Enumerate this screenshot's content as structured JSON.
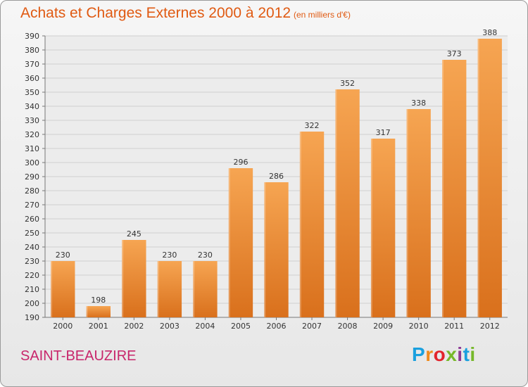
{
  "header": {
    "title": "Achats et Charges Externes 2000 à 2012",
    "subtitle": "(en milliers d'€)"
  },
  "footer": {
    "city": "SAINT-BEAUZIRE",
    "logo_text": "Proxiti"
  },
  "colors": {
    "title": "#e05a12",
    "city": "#c8266b",
    "bar_top": "#f6a552",
    "bar_bottom": "#d9701c",
    "grid": "#cfcfcf"
  },
  "chart_data": {
    "type": "bar",
    "title": "Achats et Charges Externes 2000 à 2012",
    "subtitle": "(en milliers d'€)",
    "categories": [
      "2000",
      "2001",
      "2002",
      "2003",
      "2004",
      "2005",
      "2006",
      "2007",
      "2008",
      "2009",
      "2010",
      "2011",
      "2012"
    ],
    "values": [
      230,
      198,
      245,
      230,
      230,
      296,
      286,
      322,
      352,
      317,
      338,
      373,
      388
    ],
    "data_labels": [
      "230",
      "198",
      "245",
      "230",
      "230",
      "296",
      "286",
      "322",
      "352",
      "317",
      "338",
      "373",
      "388"
    ],
    "ylim": [
      190,
      390
    ],
    "yticks": [
      190,
      200,
      210,
      220,
      230,
      240,
      250,
      260,
      270,
      280,
      290,
      300,
      310,
      320,
      330,
      340,
      350,
      360,
      370,
      380,
      390
    ],
    "xlabel": "",
    "ylabel": "",
    "grid": true
  }
}
